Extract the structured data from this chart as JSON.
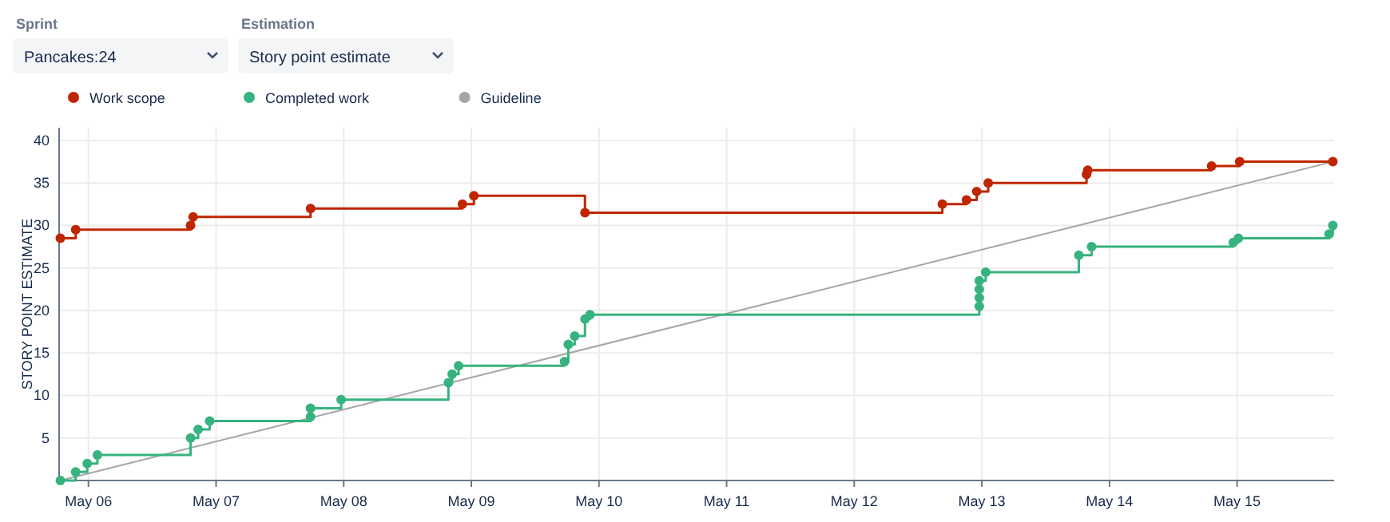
{
  "chart_data": {
    "type": "step",
    "ylabel": "STORY POINT ESTIMATE",
    "annotations": [
      "Sprint",
      "Pancakes:24",
      "Estimation",
      "Story point estimate"
    ],
    "xlim": [
      "--05-05T18:29",
      "--05-15T18:14"
    ],
    "ylim": [
      0,
      41.5
    ],
    "xticks": [
      {
        "value": "--05-06",
        "label": "May 06"
      },
      {
        "value": "--05-07",
        "label": "May 07"
      },
      {
        "value": "--05-08",
        "label": "May 08"
      },
      {
        "value": "--05-09",
        "label": "May 09"
      },
      {
        "value": "--05-10",
        "label": "May 10"
      },
      {
        "value": "--05-11",
        "label": "May 11"
      },
      {
        "value": "--05-12",
        "label": "May 12"
      },
      {
        "value": "--05-13",
        "label": "May 13"
      },
      {
        "value": "--05-14",
        "label": "May 14"
      },
      {
        "value": "--05-15",
        "label": "May 15"
      }
    ],
    "yticks": [
      5,
      10,
      15,
      20,
      25,
      30,
      35,
      40
    ],
    "grid": true,
    "legend": "top left",
    "marker": "circle",
    "series": [
      {
        "name": "Work scope",
        "color": "#bf2600",
        "x": [
          "--05-05T18:43",
          "--05-05T21:36",
          "--05-06T19:12",
          "--05-06T19:41",
          "--05-07T17:46",
          "--05-08T22:19",
          "--05-09T00:29",
          "--05-09T21:22",
          "--05-12T16:34",
          "--05-12T21:07",
          "--05-12T23:02",
          "--05-13T01:12",
          "--05-13T19:41",
          "--05-13T19:55",
          "--05-14T19:12",
          "--05-15T00:29",
          "--05-15T18:00"
        ],
        "values": [
          28.5,
          29.5,
          30,
          31,
          32,
          32.5,
          33.5,
          31.5,
          32.5,
          33,
          34,
          35,
          36,
          36.5,
          37,
          37.5,
          37.5
        ]
      },
      {
        "name": "Completed work",
        "color": "#36b37e",
        "x": [
          "--05-05T18:43",
          "--05-05T21:36",
          "--05-05T23:46",
          "--05-06T01:41",
          "--05-06T19:12",
          "--05-06T20:38",
          "--05-06T22:48",
          "--05-07T17:46",
          "--05-07T17:46",
          "--05-07T23:31",
          "--05-08T19:41",
          "--05-08T20:24",
          "--05-08T21:36",
          "--05-09T17:31",
          "--05-09T18:14",
          "--05-09T19:26",
          "--05-09T21:22",
          "--05-09T22:19",
          "--05-12T23:31",
          "--05-12T23:31",
          "--05-12T23:31",
          "--05-12T23:31",
          "--05-13T00:43",
          "--05-13T18:14",
          "--05-13T20:38",
          "--05-14T23:17",
          "--05-15T00:14",
          "--05-15T17:17",
          "--05-15T18:00"
        ],
        "values": [
          0,
          1,
          2,
          3,
          5,
          6,
          7,
          7.5,
          8.5,
          9.5,
          11.5,
          12.5,
          13.5,
          14,
          16,
          17,
          19,
          19.5,
          20.5,
          21.5,
          22.5,
          23.5,
          24.5,
          26.5,
          27.5,
          28,
          28.5,
          29,
          30
        ]
      },
      {
        "name": "Guideline",
        "type": "line",
        "marker": "none",
        "color": "#a5a5a5",
        "x": [
          "--05-05T18:43",
          "--05-15T18:00"
        ],
        "values": [
          0,
          37.5
        ]
      }
    ]
  }
}
